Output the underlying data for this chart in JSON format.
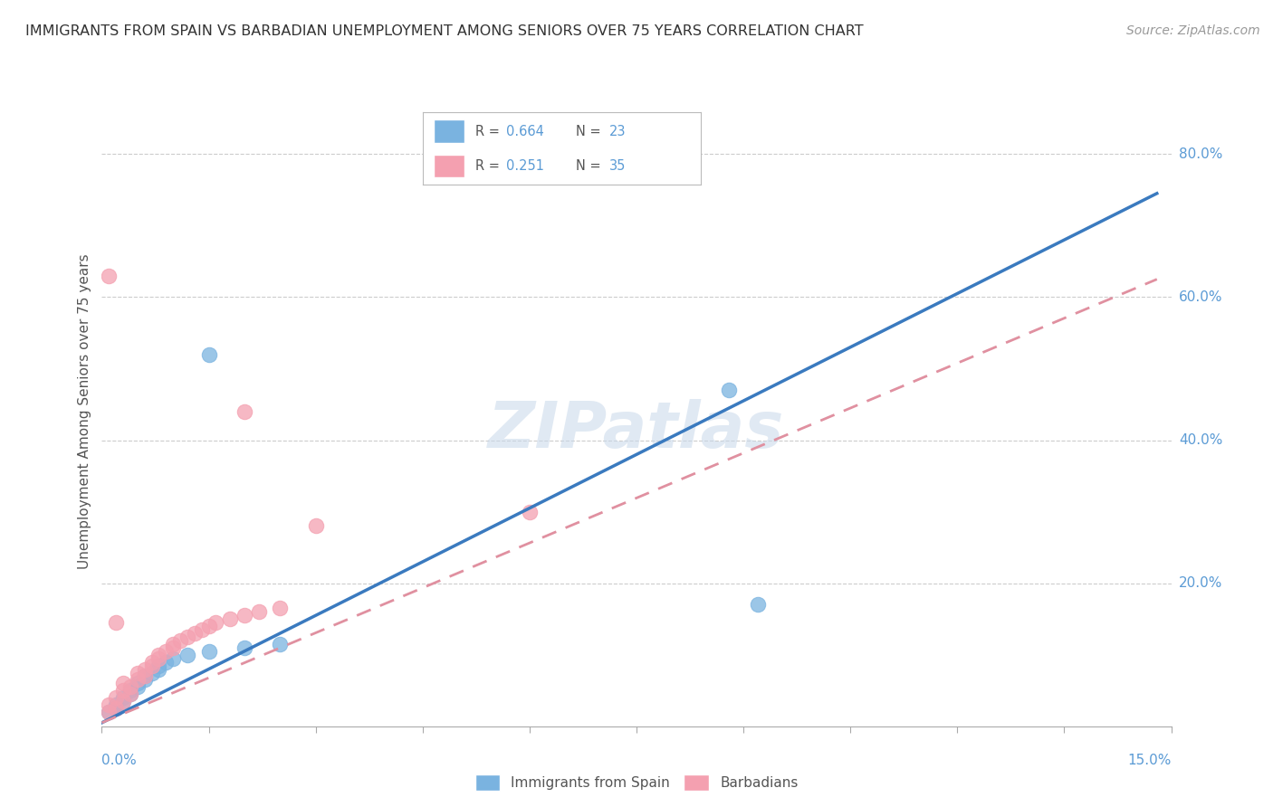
{
  "title": "IMMIGRANTS FROM SPAIN VS BARBADIAN UNEMPLOYMENT AMONG SENIORS OVER 75 YEARS CORRELATION CHART",
  "source": "Source: ZipAtlas.com",
  "ylabel": "Unemployment Among Seniors over 75 years",
  "right_yticks": [
    "80.0%",
    "60.0%",
    "40.0%",
    "20.0%"
  ],
  "right_ytick_vals": [
    0.8,
    0.6,
    0.4,
    0.2
  ],
  "legend": [
    {
      "label": "Immigrants from Spain",
      "R": 0.664,
      "N": 23,
      "color": "#7ab3e0"
    },
    {
      "label": "Barbadians",
      "R": 0.251,
      "N": 35,
      "color": "#f4a0b0"
    }
  ],
  "series1_x": [
    0.001,
    0.002,
    0.002,
    0.003,
    0.003,
    0.004,
    0.004,
    0.005,
    0.005,
    0.006,
    0.006,
    0.007,
    0.008,
    0.008,
    0.009,
    0.01,
    0.012,
    0.015,
    0.02,
    0.025,
    0.015,
    0.088,
    0.092
  ],
  "series1_y": [
    0.02,
    0.025,
    0.03,
    0.035,
    0.04,
    0.045,
    0.05,
    0.055,
    0.06,
    0.065,
    0.07,
    0.075,
    0.08,
    0.085,
    0.09,
    0.095,
    0.1,
    0.105,
    0.11,
    0.115,
    0.52,
    0.47,
    0.17
  ],
  "series2_x": [
    0.001,
    0.001,
    0.002,
    0.002,
    0.003,
    0.003,
    0.003,
    0.004,
    0.004,
    0.005,
    0.005,
    0.006,
    0.006,
    0.007,
    0.007,
    0.008,
    0.008,
    0.009,
    0.01,
    0.01,
    0.011,
    0.012,
    0.013,
    0.014,
    0.015,
    0.016,
    0.018,
    0.02,
    0.022,
    0.025,
    0.001,
    0.02,
    0.03,
    0.06,
    0.002
  ],
  "series2_y": [
    0.02,
    0.03,
    0.025,
    0.04,
    0.035,
    0.05,
    0.06,
    0.045,
    0.055,
    0.065,
    0.075,
    0.07,
    0.08,
    0.085,
    0.09,
    0.095,
    0.1,
    0.105,
    0.11,
    0.115,
    0.12,
    0.125,
    0.13,
    0.135,
    0.14,
    0.145,
    0.15,
    0.155,
    0.16,
    0.165,
    0.63,
    0.44,
    0.28,
    0.3,
    0.145
  ],
  "trend1_x": [
    0.0,
    0.148
  ],
  "trend1_y": [
    0.005,
    0.745
  ],
  "trend2_x": [
    0.0,
    0.148
  ],
  "trend2_y": [
    0.005,
    0.625
  ],
  "xlim": [
    0.0,
    0.15
  ],
  "ylim": [
    0.0,
    0.88
  ],
  "background_color": "#ffffff",
  "watermark": "ZIPatlas",
  "series1_color": "#7ab3e0",
  "series2_color": "#f4a0b0",
  "trend1_color": "#3a7abf",
  "trend2_color": "#e090a0"
}
